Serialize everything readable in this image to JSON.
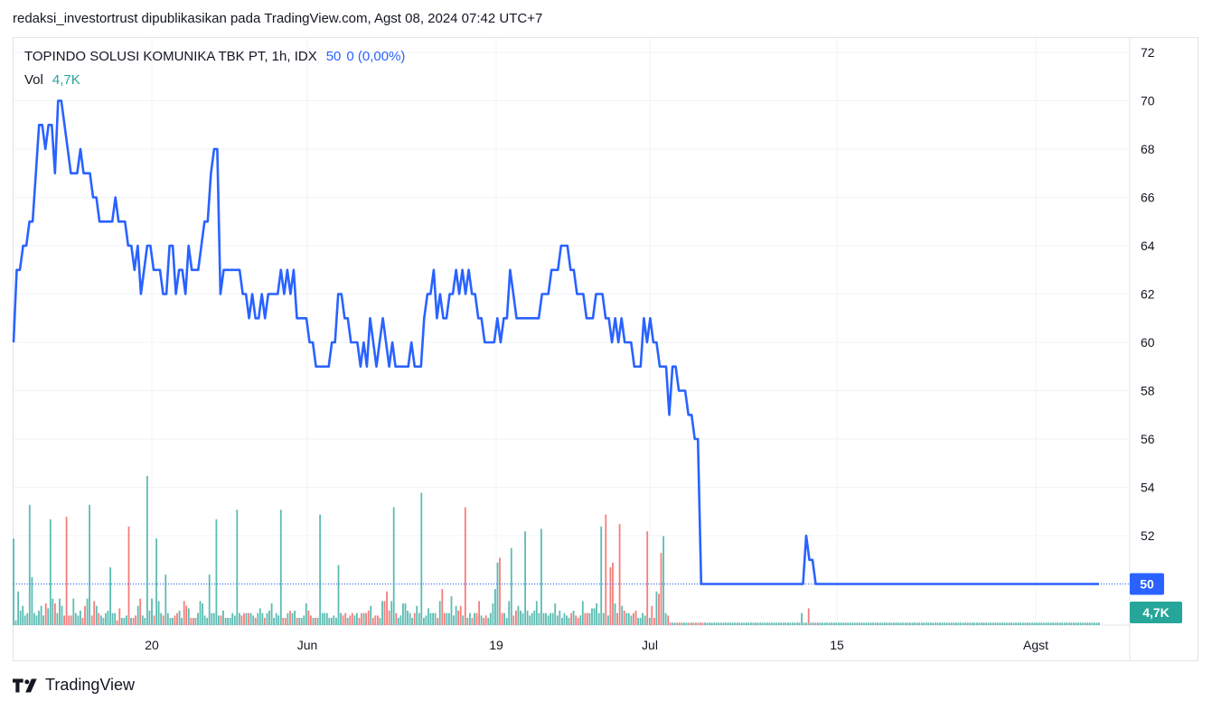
{
  "header": {
    "attribution": "redaksi_investortrust dipublikasikan pada TradingView.com, Agst 08, 2024 07:42 UTC+7"
  },
  "legend": {
    "symbol": "TOPINDO SOLUSI KOMUNIKA TBK PT, 1h, IDX",
    "last": "50",
    "change": "0 (0,00%)",
    "vol_label": "Vol",
    "vol_value": "4,7K"
  },
  "footer": {
    "brand": "TradingView"
  },
  "colors": {
    "line": "#2962ff",
    "vol_up": "#26a69a",
    "vol_down": "#ef5350",
    "badge_price": "#2962ff",
    "badge_volume": "#26a69a",
    "grid": "#f0f3fa"
  },
  "icons": {
    "logo": "tradingview-logo-icon"
  },
  "chart_data": {
    "type": "line",
    "x_ticks": [
      "20",
      "Jun",
      "19",
      "Jul",
      "15",
      "Agst"
    ],
    "y_ticks": [
      50,
      52,
      54,
      56,
      58,
      60,
      62,
      64,
      66,
      68,
      70,
      72
    ],
    "ylim": [
      48.3,
      72.6
    ],
    "grid": true,
    "price_badge": "50",
    "volume_badge": "4,7K",
    "series": [
      {
        "values": [
          60,
          63,
          63,
          64,
          64,
          65,
          65,
          67,
          69,
          69,
          68,
          69,
          69,
          67,
          70,
          70,
          69,
          68,
          67,
          67,
          67,
          68,
          67,
          67,
          67,
          66,
          66,
          65,
          65,
          65,
          65,
          65,
          66,
          65,
          65,
          65,
          64,
          64,
          63,
          64,
          62,
          63,
          64,
          64,
          63,
          63,
          63,
          62,
          62,
          64,
          64,
          62,
          63,
          63,
          62,
          64,
          63,
          63,
          63,
          64,
          65,
          65,
          67,
          68,
          68,
          62,
          63,
          63,
          63,
          63,
          63,
          63,
          62,
          62,
          61,
          62,
          61,
          61,
          62,
          61,
          62,
          62,
          62,
          62,
          63,
          62,
          63,
          62,
          63,
          61,
          61,
          61,
          61,
          60,
          60,
          59,
          59,
          59,
          59,
          59,
          60,
          60,
          62,
          62,
          61,
          61,
          60,
          60,
          60,
          59,
          60,
          59,
          61,
          60,
          59,
          60,
          61,
          60,
          59,
          60,
          59,
          59,
          59,
          59,
          59,
          60,
          59,
          59,
          59,
          61,
          62,
          62,
          63,
          61,
          62,
          61,
          61,
          62,
          62,
          63,
          62,
          63,
          62,
          63,
          62,
          62,
          61,
          61,
          60,
          60,
          60,
          60,
          61,
          60,
          61,
          61,
          63,
          62,
          61,
          61,
          61,
          61,
          61,
          61,
          61,
          61,
          62,
          62,
          62,
          63,
          63,
          63,
          64,
          64,
          64,
          63,
          63,
          62,
          62,
          62,
          61,
          61,
          61,
          62,
          62,
          62,
          61,
          61,
          60,
          61,
          60,
          61,
          60,
          60,
          60,
          59,
          59,
          59,
          61,
          60,
          61,
          60,
          60,
          59,
          59,
          59,
          57,
          59,
          59,
          58,
          58,
          58,
          57,
          57,
          56,
          56,
          50,
          50,
          50,
          50,
          50,
          50,
          50,
          50,
          50,
          50,
          50,
          50,
          50,
          50,
          50,
          50,
          50,
          50,
          50,
          50,
          50,
          50,
          50,
          50,
          50,
          50,
          50,
          50,
          50,
          50,
          50,
          50,
          50,
          52,
          51,
          51,
          50,
          50,
          50,
          50,
          50,
          50,
          50,
          50,
          50,
          50,
          50,
          50,
          50,
          50,
          50,
          50,
          50,
          50,
          50,
          50,
          50,
          50,
          50,
          50,
          50,
          50,
          50,
          50,
          50,
          50,
          50,
          50,
          50,
          50,
          50,
          50,
          50,
          50,
          50,
          50,
          50,
          50,
          50,
          50,
          50,
          50,
          50,
          50,
          50,
          50,
          50,
          50,
          50,
          50,
          50,
          50,
          50,
          50,
          50,
          50,
          50,
          50,
          50,
          50,
          50,
          50,
          50,
          50,
          50,
          50,
          50,
          50,
          50,
          50,
          50,
          50,
          50,
          50,
          50,
          50,
          50,
          50,
          50,
          50,
          50,
          50,
          50,
          50,
          50,
          50
        ]
      }
    ],
    "volume": {
      "values": [
        3.6,
        0.2,
        1.4,
        0.6,
        0.8,
        0.4,
        0.5,
        5.0,
        2.0,
        0.5,
        0.4,
        0.6,
        0.8,
        0.4,
        0.9,
        0.7,
        4.4,
        1.1,
        0.9,
        0.5,
        1.1,
        0.8,
        0.4,
        4.5,
        0.4,
        0.4,
        1.1,
        0.5,
        0.4,
        0.6,
        0.3,
        0.8,
        1.1,
        5.0,
        0.4,
        1.0,
        0.8,
        0.5,
        0.4,
        0.3,
        0.5,
        0.6,
        2.4,
        0.5,
        0.5,
        0.2,
        0.7,
        0.3,
        0.3,
        0.4,
        4.1,
        0.3,
        0.3,
        0.4,
        0.8,
        1.1,
        0.4,
        0.3,
        6.2,
        0.6,
        1.1,
        0.4,
        3.6,
        1.0,
        0.5,
        0.4,
        2.1,
        0.5,
        0.3,
        0.3,
        0.4,
        0.5,
        0.6,
        0.3,
        1.0,
        0.8,
        0.7,
        0.3,
        0.3,
        0.3,
        0.5,
        1.0,
        0.9,
        0.4,
        0.3,
        2.1,
        0.5,
        0.5,
        4.4,
        0.4,
        0.4,
        0.6,
        0.3,
        0.3,
        0.3,
        0.5,
        0.4,
        4.8,
        0.5,
        0.4,
        0.5,
        0.5,
        0.5,
        0.5,
        0.4,
        0.3,
        0.5,
        0.7,
        0.5,
        0.3,
        0.5,
        0.6,
        0.9,
        0.3,
        0.5,
        0.4,
        4.8,
        0.3,
        0.3,
        0.5,
        0.6,
        0.5,
        0.6,
        0.3,
        0.3,
        0.3,
        0.4,
        0.9,
        0.6,
        0.4,
        0.3,
        0.3,
        0.3,
        4.6,
        0.5,
        0.5,
        0.5,
        0.3,
        0.3,
        0.4,
        0.3,
        2.5,
        0.5,
        0.4,
        0.5,
        0.3,
        0.4,
        0.5,
        0.4,
        0.5,
        0.3,
        0.5,
        0.5,
        0.5,
        0.6,
        0.8,
        0.3,
        0.4,
        0.4,
        0.3,
        1.0,
        1.0,
        1.4,
        0.6,
        1.0,
        4.9,
        0.5,
        0.3,
        0.4,
        0.9,
        0.9,
        0.6,
        0.5,
        0.3,
        0.5,
        0.8,
        0.5,
        5.5,
        0.3,
        0.4,
        0.7,
        0.5,
        0.5,
        0.5,
        0.3,
        1.0,
        1.5,
        0.5,
        0.5,
        0.5,
        1.2,
        0.4,
        0.8,
        0.6,
        0.8,
        0.4,
        4.9,
        0.3,
        0.5,
        0.3,
        0.5,
        0.5,
        1.0,
        0.4,
        0.3,
        0.4,
        0.3,
        0.5,
        0.9,
        1.5,
        2.6,
        2.8,
        0.5,
        0.5,
        0.3,
        1.0,
        3.2,
        0.4,
        0.6,
        0.8,
        0.6,
        0.5,
        3.9,
        0.6,
        0.4,
        0.5,
        0.6,
        1.0,
        0.5,
        4.0,
        0.5,
        0.5,
        0.4,
        0.5,
        0.5,
        0.9,
        0.4,
        0.6,
        0.3,
        0.5,
        0.4,
        0.3,
        0.5,
        0.6,
        0.4,
        0.3,
        0.4,
        1.0,
        0.5,
        0.5,
        0.5,
        0.7,
        0.7,
        0.9,
        0.5,
        4.1,
        0.5,
        4.6,
        0.4,
        2.4,
        2.6,
        0.9,
        0.5,
        4.2,
        0.8,
        0.6,
        0.5,
        0.5,
        0.4,
        0.5,
        0.6,
        0.3,
        0.3,
        0.5,
        0.4,
        3.9,
        0.3,
        0.8,
        0.3,
        1.4,
        1.3,
        3.0,
        3.7,
        0.5,
        0.4,
        0.1,
        0.1,
        0.1,
        0.1,
        0.1,
        0.1,
        0.1,
        0.1,
        0.1,
        0.1,
        0.1,
        0.1,
        0.1,
        0.1,
        0.1,
        0.1,
        0.1,
        0.1,
        0.1,
        0.1,
        0.1,
        0.1,
        0.1,
        0.1,
        0.1,
        0.1,
        0.1,
        0.1,
        0.1,
        0.1,
        0.1,
        0.1,
        0.1,
        0.1,
        0.1,
        0.1,
        0.1,
        0.1,
        0.1,
        0.1,
        0.1,
        0.1,
        0.1,
        0.1,
        0.1,
        0.1,
        0.1,
        0.1,
        0.1,
        0.1,
        0.1,
        0.1,
        0.1,
        0.1,
        0.1,
        0.1,
        0.1,
        0.5,
        0.1,
        0.1,
        0.7,
        0.1,
        0.1,
        0.1,
        0.1,
        0.1,
        0.1,
        0.1,
        0.1,
        0.1,
        0.1,
        0.1,
        0.1,
        0.1,
        0.1,
        0.1,
        0.1,
        0.1,
        0.1,
        0.1,
        0.1,
        0.1,
        0.1,
        0.1,
        0.1,
        0.1,
        0.1,
        0.1,
        0.1,
        0.1,
        0.1,
        0.1,
        0.1,
        0.1,
        0.1,
        0.1,
        0.1,
        0.1,
        0.1,
        0.1,
        0.1,
        0.1,
        0.1,
        0.1,
        0.1,
        0.1,
        0.1,
        0.1,
        0.1,
        0.1,
        0.1,
        0.1,
        0.1,
        0.1,
        0.1,
        0.1,
        0.1,
        0.1,
        0.1,
        0.1,
        0.1,
        0.1,
        0.1,
        0.1,
        0.1,
        0.1,
        0.1,
        0.1,
        0.1,
        0.1,
        0.1,
        0.1,
        0.1,
        0.1,
        0.1,
        0.1,
        0.1,
        0.1,
        0.1,
        0.1,
        0.1,
        0.1,
        0.1,
        0.1,
        0.1,
        0.1,
        0.1,
        0.1,
        0.1,
        0.1,
        0.1,
        0.1,
        0.1,
        0.1,
        0.1,
        0.1,
        0.1,
        0.1,
        0.1,
        0.1,
        0.1,
        0.1,
        0.1,
        0.1,
        0.1,
        0.1,
        0.1,
        0.1,
        0.1,
        0.1,
        0.1,
        0.1,
        0.1,
        0.1,
        0.1,
        0.1,
        0.1,
        0.1,
        0.1,
        0.1,
        0.1,
        0.1,
        0.1,
        0.1,
        0.1,
        0.1,
        0.1
      ]
    }
  }
}
